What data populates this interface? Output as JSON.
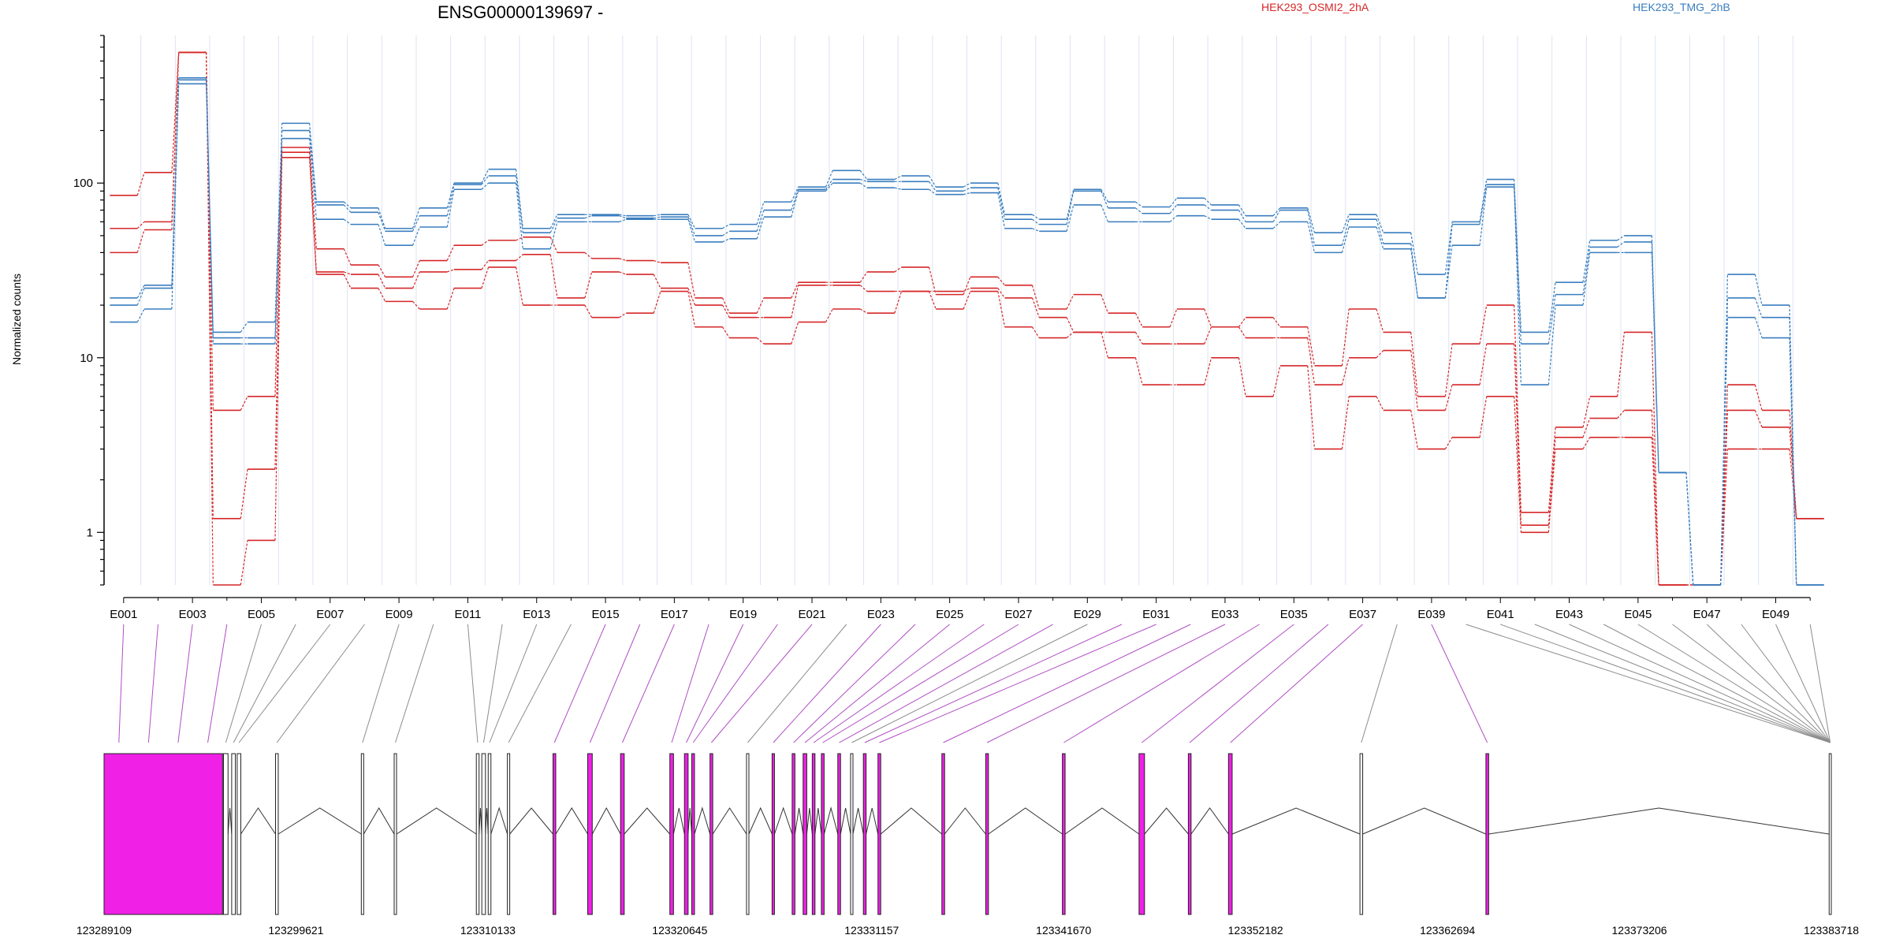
{
  "chart_data": {
    "type": "line",
    "title": "ENSG00000139697 -",
    "ylabel": "Normalized counts",
    "yscale": "log",
    "ylim": [
      0.5,
      700
    ],
    "yticks": [
      1,
      10,
      100
    ],
    "ytick_labels": [
      "1",
      "10",
      "100"
    ],
    "n_exons": 50,
    "exon_tick_labels": [
      "E001",
      "E003",
      "E005",
      "E007",
      "E009",
      "E011",
      "E013",
      "E015",
      "E017",
      "E019",
      "E021",
      "E023",
      "E025",
      "E027",
      "E029",
      "E031",
      "E033",
      "E035",
      "E037",
      "E039",
      "E041",
      "E043",
      "E045",
      "E047",
      "E049"
    ],
    "legend": [
      {
        "label": "HEK293_OSMI2_2hA",
        "color": "#d62728"
      },
      {
        "label": "HEK293_TMG_2hB",
        "color": "#3a7ebf"
      }
    ],
    "series": [
      {
        "group": "HEK293_OSMI2_2hA",
        "color": "#d62728",
        "values": [
          85,
          115,
          560,
          5,
          6,
          160,
          42,
          34,
          29,
          36,
          44,
          47,
          49,
          40,
          37,
          36,
          35,
          22,
          18,
          22,
          27,
          27,
          31,
          33,
          23,
          29,
          26,
          19,
          23,
          18,
          15,
          19,
          15,
          17,
          15,
          9,
          19,
          14,
          6,
          12,
          20,
          1.3,
          4,
          6,
          14,
          0.5,
          0.5,
          5,
          4,
          1.2
        ]
      },
      {
        "group": "HEK293_OSMI2_2hA",
        "color": "#d62728",
        "values": [
          55,
          60,
          560,
          1.2,
          2.3,
          150,
          31,
          30,
          25,
          31,
          32,
          36,
          39,
          22,
          31,
          30,
          25,
          20,
          17,
          17,
          26,
          26,
          24,
          24,
          24,
          25,
          22,
          17,
          14,
          14,
          12,
          12,
          15,
          13,
          13,
          7,
          10,
          11,
          5,
          7,
          12,
          1.1,
          3.5,
          4.5,
          5,
          0.5,
          0.5,
          7,
          5,
          1.2
        ]
      },
      {
        "group": "HEK293_OSMI2_2hA",
        "color": "#d62728",
        "values": [
          40,
          54,
          560,
          0.5,
          0.9,
          140,
          30,
          25,
          21,
          19,
          25,
          33,
          20,
          20,
          17,
          18,
          24,
          15,
          13,
          12,
          16,
          19,
          18,
          24,
          19,
          24,
          15,
          13,
          14,
          10,
          7,
          7,
          10,
          6,
          9,
          3,
          6,
          5,
          3,
          3.5,
          6,
          1,
          3,
          3.5,
          3.5,
          0.5,
          0.5,
          3,
          3,
          1.2
        ]
      },
      {
        "group": "HEK293_TMG_2hB",
        "color": "#3a7ebf",
        "values": [
          22,
          26,
          390,
          14,
          16,
          220,
          78,
          72,
          55,
          72,
          100,
          120,
          55,
          66,
          66,
          65,
          66,
          55,
          58,
          78,
          95,
          118,
          105,
          110,
          95,
          100,
          66,
          62,
          92,
          78,
          73,
          82,
          75,
          65,
          72,
          52,
          66,
          52,
          30,
          60,
          105,
          14,
          27,
          47,
          50,
          2.2,
          0.5,
          30,
          20,
          0.5
        ]
      },
      {
        "group": "HEK293_TMG_2hB",
        "color": "#3a7ebf",
        "values": [
          20,
          25,
          400,
          13,
          13,
          200,
          75,
          68,
          53,
          65,
          98,
          110,
          52,
          63,
          65,
          63,
          64,
          50,
          53,
          70,
          92,
          105,
          102,
          102,
          90,
          94,
          62,
          58,
          90,
          72,
          67,
          75,
          70,
          60,
          70,
          44,
          62,
          45,
          22,
          58,
          98,
          12,
          23,
          43,
          46,
          2.2,
          0.5,
          22,
          17,
          0.5
        ]
      },
      {
        "group": "HEK293_TMG_2hB",
        "color": "#3a7ebf",
        "values": [
          16,
          19,
          370,
          12,
          12,
          180,
          62,
          58,
          44,
          56,
          92,
          100,
          42,
          60,
          60,
          62,
          62,
          46,
          48,
          64,
          90,
          100,
          94,
          92,
          86,
          88,
          55,
          53,
          75,
          60,
          60,
          65,
          62,
          55,
          60,
          40,
          56,
          42,
          22,
          44,
          95,
          7,
          20,
          40,
          40,
          2.2,
          0.5,
          17,
          13,
          0.5
        ]
      }
    ],
    "genomic_axis": {
      "start": 123289109,
      "end": 123383718,
      "tick_labels": [
        "123289109",
        "123299621",
        "123310133",
        "123320645",
        "123331157",
        "123341670",
        "123352182",
        "123362694",
        "123373206",
        "123383718"
      ]
    },
    "gene_model": {
      "exon_colors": {
        "highlighted": "#f020e6",
        "normal": "#ffffff"
      },
      "connector_colors": {
        "highlighted": "#b04ec4",
        "normal": "#8c8c8c"
      },
      "exons": [
        {
          "start": 123289109,
          "end": 123295600,
          "highlighted": true
        },
        {
          "start": 123295650,
          "end": 123295900,
          "highlighted": false
        },
        {
          "start": 123296100,
          "end": 123296300,
          "highlighted": false
        },
        {
          "start": 123296400,
          "end": 123296600,
          "highlighted": false
        },
        {
          "start": 123298500,
          "end": 123298650,
          "highlighted": false
        },
        {
          "start": 123303200,
          "end": 123303330,
          "highlighted": false
        },
        {
          "start": 123305000,
          "end": 123305130,
          "highlighted": false
        },
        {
          "start": 123309500,
          "end": 123309650,
          "highlighted": false
        },
        {
          "start": 123309800,
          "end": 123310000,
          "highlighted": false
        },
        {
          "start": 123310150,
          "end": 123310300,
          "highlighted": false
        },
        {
          "start": 123311200,
          "end": 123311330,
          "highlighted": false
        },
        {
          "start": 123313700,
          "end": 123313850,
          "highlighted": true
        },
        {
          "start": 123315600,
          "end": 123315850,
          "highlighted": true
        },
        {
          "start": 123317400,
          "end": 123317600,
          "highlighted": true
        },
        {
          "start": 123320100,
          "end": 123320300,
          "highlighted": true
        },
        {
          "start": 123320900,
          "end": 123321100,
          "highlighted": true
        },
        {
          "start": 123321300,
          "end": 123321450,
          "highlighted": true
        },
        {
          "start": 123322300,
          "end": 123322450,
          "highlighted": true
        },
        {
          "start": 123324300,
          "end": 123324430,
          "highlighted": false
        },
        {
          "start": 123325700,
          "end": 123325830,
          "highlighted": true
        },
        {
          "start": 123326800,
          "end": 123326950,
          "highlighted": true
        },
        {
          "start": 123327400,
          "end": 123327600,
          "highlighted": true
        },
        {
          "start": 123327900,
          "end": 123328050,
          "highlighted": true
        },
        {
          "start": 123328400,
          "end": 123328550,
          "highlighted": true
        },
        {
          "start": 123329300,
          "end": 123329450,
          "highlighted": true
        },
        {
          "start": 123330000,
          "end": 123330130,
          "highlighted": false
        },
        {
          "start": 123330700,
          "end": 123330850,
          "highlighted": true
        },
        {
          "start": 123331500,
          "end": 123331650,
          "highlighted": true
        },
        {
          "start": 123335000,
          "end": 123335150,
          "highlighted": true
        },
        {
          "start": 123337400,
          "end": 123337550,
          "highlighted": true
        },
        {
          "start": 123341600,
          "end": 123341750,
          "highlighted": true
        },
        {
          "start": 123345800,
          "end": 123346100,
          "highlighted": true
        },
        {
          "start": 123348500,
          "end": 123348650,
          "highlighted": true
        },
        {
          "start": 123350700,
          "end": 123350900,
          "highlighted": true
        },
        {
          "start": 123357900,
          "end": 123358050,
          "highlighted": false
        },
        {
          "start": 123364800,
          "end": 123364950,
          "highlighted": true
        },
        {
          "start": 123383600,
          "end": 123383718,
          "highlighted": false
        }
      ]
    }
  }
}
